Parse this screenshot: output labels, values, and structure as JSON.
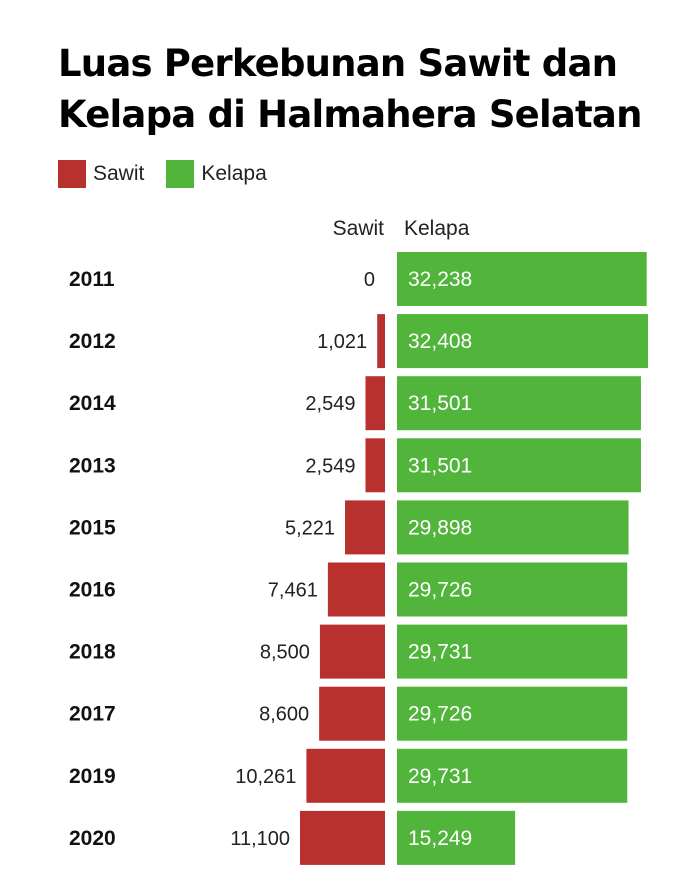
{
  "chart_data": {
    "type": "bar",
    "title": "Luas Perkebunan Sawit dan Kelapa di Halmahera Selatan",
    "legend": {
      "placement": "top-left",
      "entries": [
        {
          "name": "Sawit",
          "color": "#b8312f"
        },
        {
          "name": "Kelapa",
          "color": "#51b43b"
        }
      ]
    },
    "column_headers": {
      "sawit": "Sawit",
      "kelapa": "Kelapa"
    },
    "categories": [
      "2011",
      "2012",
      "2014",
      "2013",
      "2015",
      "2016",
      "2018",
      "2017",
      "2019",
      "2020"
    ],
    "series": [
      {
        "name": "Sawit",
        "color": "#b8312f",
        "values": [
          0,
          1021,
          2549,
          2549,
          5221,
          7461,
          8500,
          8600,
          10261,
          11100
        ],
        "labels": [
          "0",
          "1,021",
          "2,549",
          "2,549",
          "5,221",
          "7,461",
          "8,500",
          "8,600",
          "10,261",
          "11,100"
        ]
      },
      {
        "name": "Kelapa",
        "color": "#51b43b",
        "values": [
          32238,
          32408,
          31501,
          31501,
          29898,
          29726,
          29731,
          29726,
          29731,
          15249
        ],
        "labels": [
          "32,238",
          "32,408",
          "31,501",
          "31,501",
          "29,898",
          "29,726",
          "29,731",
          "29,726",
          "29,731",
          "15,249"
        ]
      }
    ],
    "grid": false
  }
}
